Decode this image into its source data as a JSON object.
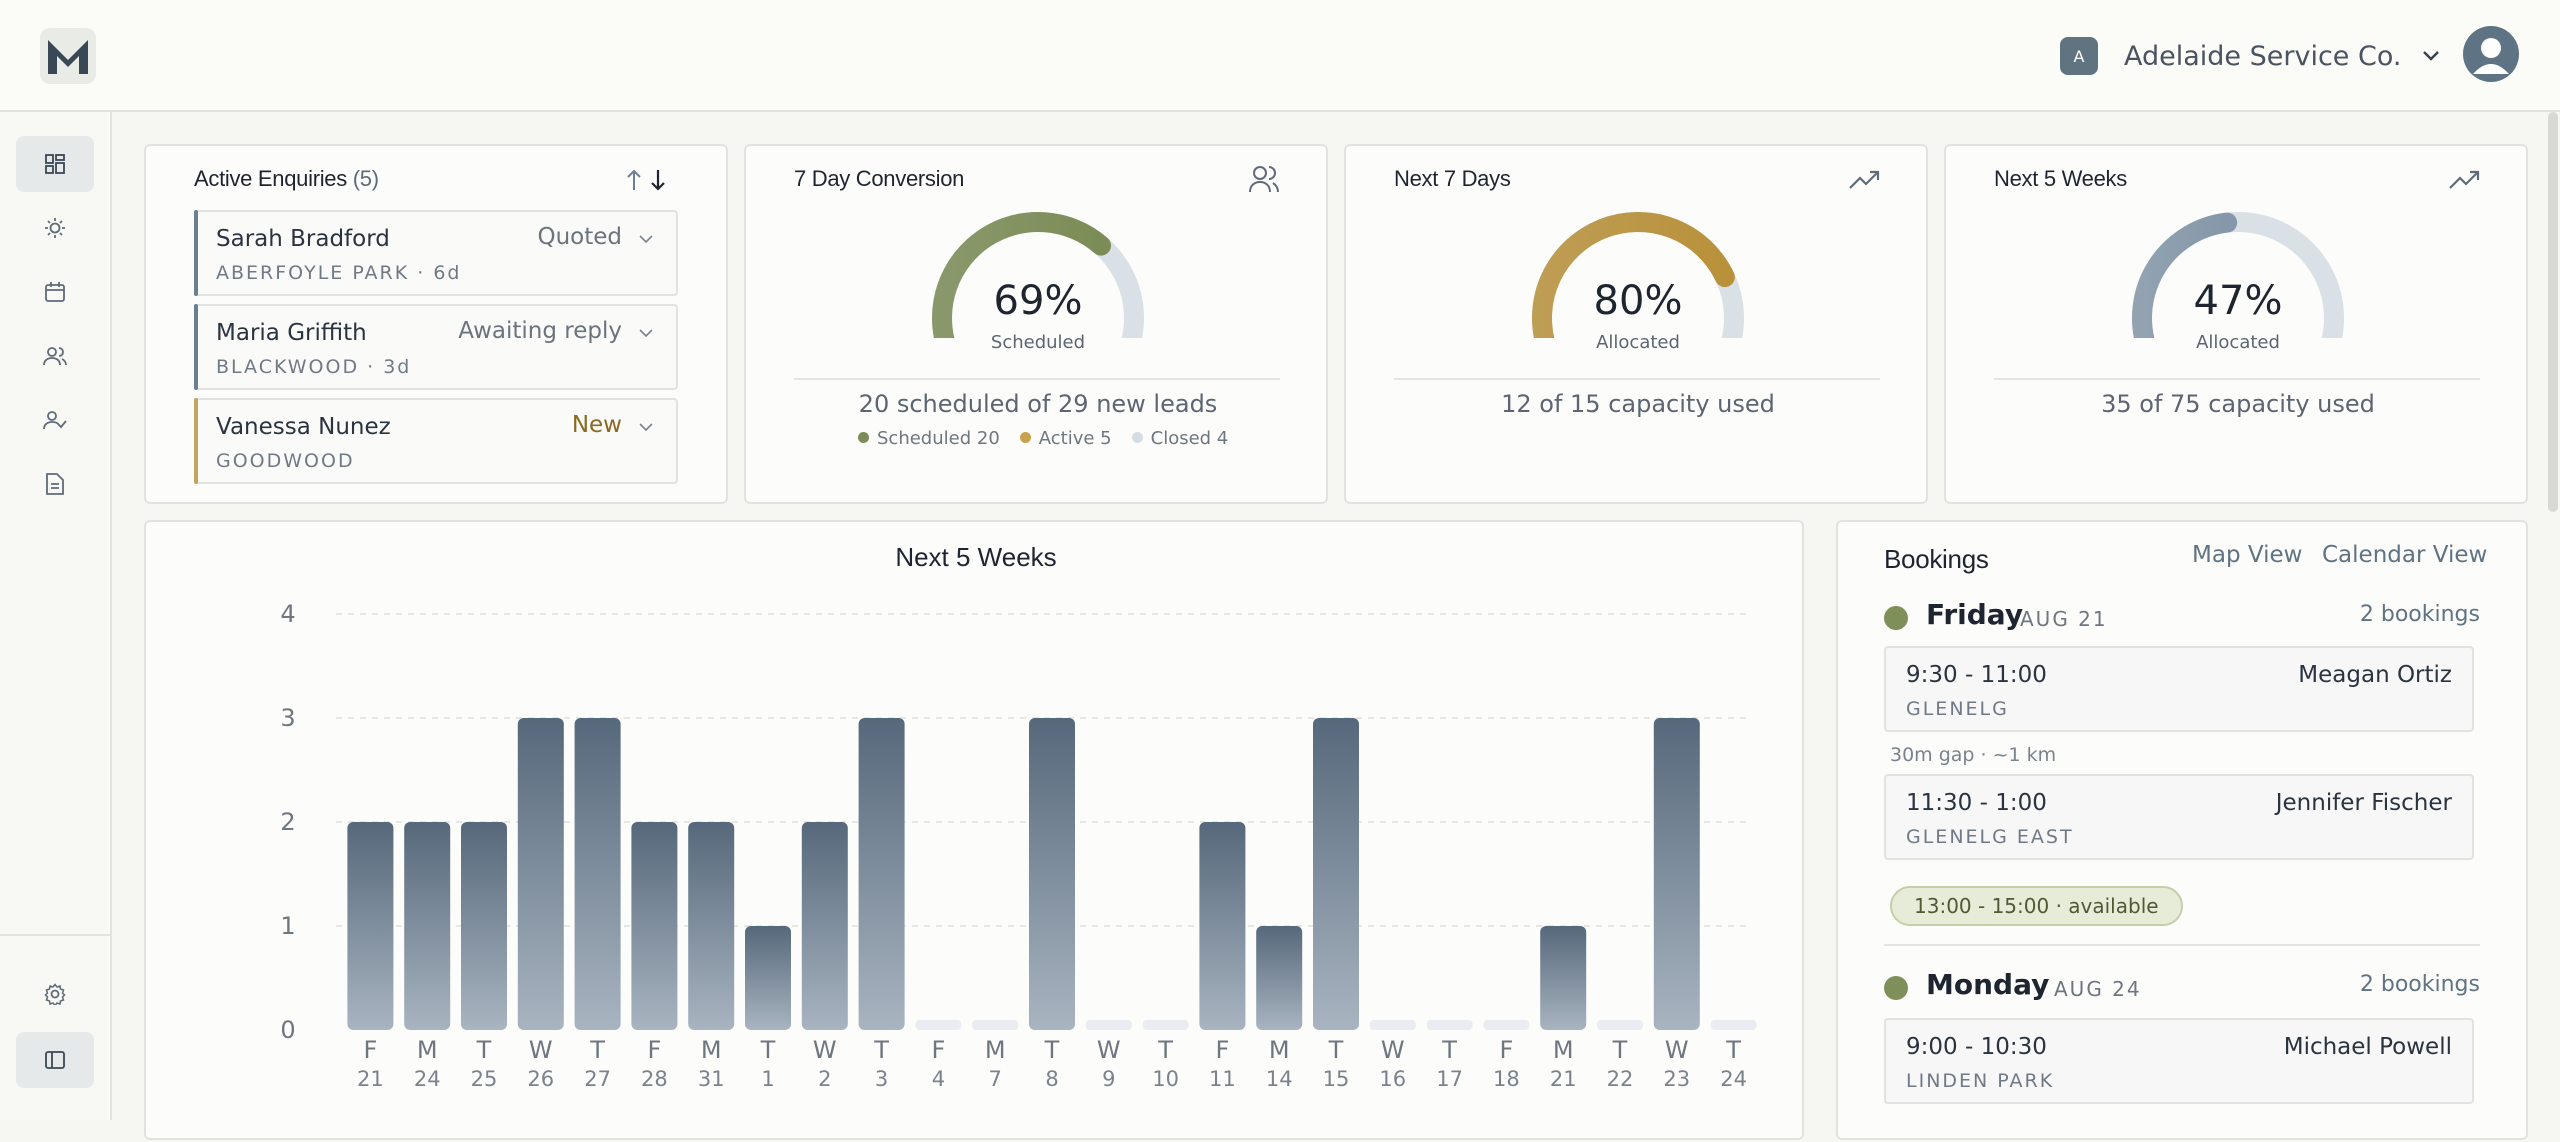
{
  "app": {
    "logo_letter": "M"
  },
  "header": {
    "org_badge": "A",
    "org_name": "Adelaide Service Co."
  },
  "sidebar": {
    "items": [
      "dashboard",
      "sun",
      "calendar",
      "people",
      "user-check",
      "document"
    ],
    "footer": [
      "settings",
      "panel-toggle"
    ]
  },
  "enquiries": {
    "title": "Active Enquiries",
    "count": "(5)",
    "items": [
      {
        "name": "Sarah Bradford",
        "location": "ABERFOYLE PARK · 6d",
        "status": "Quoted",
        "color": "#6a7f90"
      },
      {
        "name": "Maria Griffith",
        "location": "BLACKWOOD · 3d",
        "status": "Awaiting reply",
        "color": "#6a7f90"
      },
      {
        "name": "Vanessa Nunez",
        "location": "GOODWOOD",
        "status": "New",
        "color": "#c4a45e"
      }
    ]
  },
  "conversion": {
    "title": "7 Day Conversion",
    "percent": "69%",
    "label": "Scheduled",
    "value": 0.69,
    "color": "#7b8c56",
    "summary": "20 scheduled of 29 new leads",
    "legend": [
      {
        "label": "Scheduled 20",
        "color": "#7b8c56"
      },
      {
        "label": "Active 5",
        "color": "#c9a24a"
      },
      {
        "label": "Closed 4",
        "color": "#d5dde4"
      }
    ]
  },
  "next7": {
    "title": "Next 7 Days",
    "percent": "80%",
    "label": "Allocated",
    "value": 0.8,
    "color": "#b9913a",
    "summary": "12 of 15 capacity used"
  },
  "next5w": {
    "title": "Next 5 Weeks",
    "percent": "47%",
    "label": "Allocated",
    "value": 0.47,
    "color": "#8597a8",
    "summary": "35 of 75 capacity used"
  },
  "chart_data": {
    "type": "bar",
    "title": "Next 5 Weeks",
    "xlabel": "",
    "ylabel": "",
    "ylim": [
      0,
      4
    ],
    "yticks": [
      "0",
      "1",
      "2",
      "3",
      "4"
    ],
    "grid": true,
    "categories": [
      {
        "d": "F",
        "n": "21"
      },
      {
        "d": "M",
        "n": "24"
      },
      {
        "d": "T",
        "n": "25"
      },
      {
        "d": "W",
        "n": "26"
      },
      {
        "d": "T",
        "n": "27"
      },
      {
        "d": "F",
        "n": "28"
      },
      {
        "d": "M",
        "n": "31"
      },
      {
        "d": "T",
        "n": "1"
      },
      {
        "d": "W",
        "n": "2"
      },
      {
        "d": "T",
        "n": "3"
      },
      {
        "d": "F",
        "n": "4"
      },
      {
        "d": "M",
        "n": "7"
      },
      {
        "d": "T",
        "n": "8"
      },
      {
        "d": "W",
        "n": "9"
      },
      {
        "d": "T",
        "n": "10"
      },
      {
        "d": "F",
        "n": "11"
      },
      {
        "d": "M",
        "n": "14"
      },
      {
        "d": "T",
        "n": "15"
      },
      {
        "d": "W",
        "n": "16"
      },
      {
        "d": "T",
        "n": "17"
      },
      {
        "d": "F",
        "n": "18"
      },
      {
        "d": "M",
        "n": "21"
      },
      {
        "d": "T",
        "n": "22"
      },
      {
        "d": "W",
        "n": "23"
      },
      {
        "d": "T",
        "n": "24"
      }
    ],
    "values": [
      2,
      2,
      2,
      3,
      3,
      2,
      2,
      1,
      2,
      3,
      0,
      0,
      3,
      0,
      0,
      2,
      1,
      3,
      0,
      0,
      0,
      1,
      0,
      3,
      0
    ]
  },
  "bookings": {
    "title": "Bookings",
    "map_view": "Map View",
    "calendar_view": "Calendar View",
    "days": [
      {
        "name": "Friday",
        "date": "AUG 21",
        "count": "2 bookings",
        "items": [
          {
            "time": "9:30 - 11:00",
            "who": "Meagan Ortiz",
            "loc": "GLENELG"
          },
          {
            "time": "11:30 - 1:00",
            "who": "Jennifer Fischer",
            "loc": "GLENELG EAST"
          }
        ],
        "gap": "30m gap · ~1 km",
        "available": "13:00 - 15:00  ·  available"
      },
      {
        "name": "Monday",
        "date": "AUG 24",
        "count": "2 bookings",
        "items": [
          {
            "time": "9:00 - 10:30",
            "who": "Michael Powell",
            "loc": "LINDEN PARK"
          }
        ]
      }
    ]
  }
}
